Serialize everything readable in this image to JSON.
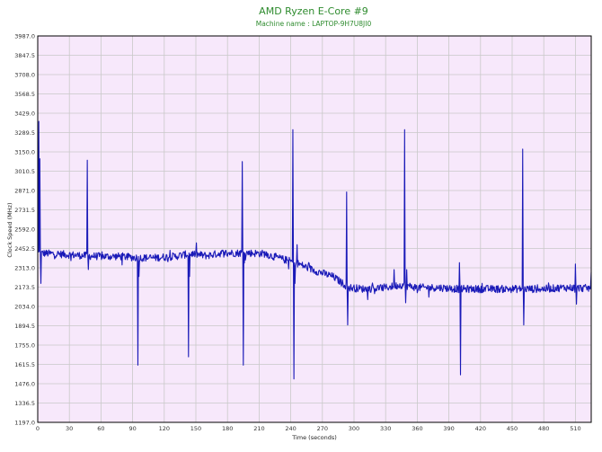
{
  "colors": {
    "plot_background": "#f7e8fb",
    "grid": "#c9c9c9",
    "line": "#1a1ab8",
    "title": "#2e8b2e",
    "frame": "#000000"
  },
  "chart_data": {
    "type": "line",
    "title": "AMD Ryzen E-Core #9",
    "subtitle": "Machine name : LAPTOP-9H7U8JI0",
    "xlabel": "Time (seconds)",
    "ylabel": "Clock Speed (MHz)",
    "xlim": [
      0,
      525
    ],
    "ylim": [
      1197.0,
      3987.0
    ],
    "grid": true,
    "x_ticks": [
      0,
      30,
      60,
      90,
      120,
      150,
      180,
      210,
      240,
      270,
      300,
      330,
      360,
      390,
      420,
      450,
      480,
      510
    ],
    "y_ticks": [
      "3987.0",
      "3847.5",
      "3708.0",
      "3568.5",
      "3429.0",
      "3289.5",
      "3150.0",
      "3010.5",
      "2871.0",
      "2731.5",
      "2592.0",
      "2452.5",
      "2313.0",
      "2173.5",
      "2034.0",
      "1894.5",
      "1755.0",
      "1615.5",
      "1476.0",
      "1336.5",
      "1197.0"
    ],
    "series": [
      {
        "baseline": [
          [
            0,
            2420
          ],
          [
            25,
            2410
          ],
          [
            45,
            2400
          ],
          [
            60,
            2395
          ],
          [
            80,
            2395
          ],
          [
            95,
            2385
          ],
          [
            110,
            2385
          ],
          [
            130,
            2395
          ],
          [
            145,
            2415
          ],
          [
            160,
            2400
          ],
          [
            175,
            2420
          ],
          [
            190,
            2420
          ],
          [
            200,
            2420
          ],
          [
            215,
            2415
          ],
          [
            230,
            2380
          ],
          [
            245,
            2350
          ],
          [
            260,
            2300
          ],
          [
            280,
            2250
          ],
          [
            295,
            2170
          ],
          [
            310,
            2160
          ],
          [
            330,
            2170
          ],
          [
            345,
            2190
          ],
          [
            360,
            2170
          ],
          [
            380,
            2170
          ],
          [
            400,
            2160
          ],
          [
            420,
            2160
          ],
          [
            440,
            2160
          ],
          [
            460,
            2160
          ],
          [
            480,
            2160
          ],
          [
            500,
            2170
          ],
          [
            525,
            2165
          ]
        ],
        "spikes": [
          [
            1,
            3370
          ],
          [
            2,
            3100
          ],
          [
            3,
            2200
          ],
          [
            47,
            3090
          ],
          [
            48,
            2300
          ],
          [
            95,
            1610
          ],
          [
            96,
            2250
          ],
          [
            143,
            1670
          ],
          [
            144,
            2250
          ],
          [
            194,
            3080
          ],
          [
            195,
            1610
          ],
          [
            242,
            3310
          ],
          [
            243,
            1510
          ],
          [
            244,
            2200
          ],
          [
            246,
            2480
          ],
          [
            260,
            2320
          ],
          [
            293,
            2860
          ],
          [
            294,
            1900
          ],
          [
            338,
            2300
          ],
          [
            348,
            3310
          ],
          [
            349,
            2060
          ],
          [
            350,
            2300
          ],
          [
            400,
            2350
          ],
          [
            401,
            1540
          ],
          [
            460,
            3170
          ],
          [
            461,
            1900
          ],
          [
            510,
            2340
          ],
          [
            511,
            2050
          ],
          [
            525,
            2280
          ]
        ]
      }
    ]
  }
}
